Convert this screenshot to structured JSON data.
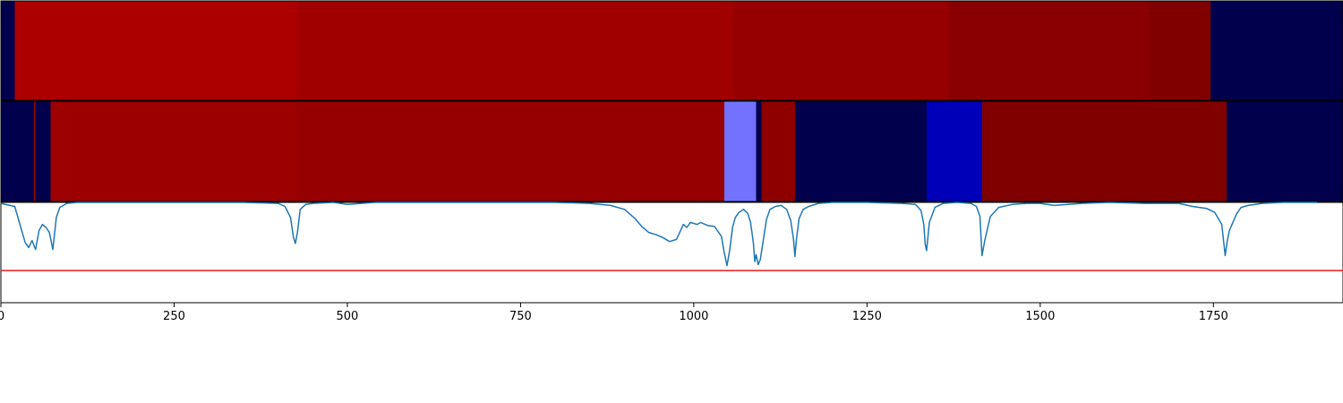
{
  "chart_data": {
    "type": "heatmap",
    "title": "",
    "xlabel": "",
    "ylabel": "",
    "xlim": [
      0,
      1937
    ],
    "x_ticks": [
      {
        "value": 0,
        "label": "0"
      },
      {
        "value": 250,
        "label": "250"
      },
      {
        "value": 500,
        "label": "500"
      },
      {
        "value": 750,
        "label": "750"
      },
      {
        "value": 1000,
        "label": "1000"
      },
      {
        "value": 1250,
        "label": "1250"
      },
      {
        "value": 1500,
        "label": "1500"
      },
      {
        "value": 1750,
        "label": "1750"
      }
    ],
    "tracks": [
      {
        "segments": [
          {
            "start": 0,
            "end": 20,
            "color": "#00004c"
          },
          {
            "start": 20,
            "end": 427,
            "color": "#ac0000"
          },
          {
            "start": 427,
            "end": 1057,
            "color": "#a00000"
          },
          {
            "start": 1057,
            "end": 1368,
            "color": "#960000"
          },
          {
            "start": 1368,
            "end": 1657,
            "color": "#8a0000"
          },
          {
            "start": 1657,
            "end": 1746,
            "color": "#800000"
          },
          {
            "start": 1746,
            "end": 1937,
            "color": "#00004c"
          }
        ]
      },
      {
        "segments": [
          {
            "start": 0,
            "end": 48,
            "color": "#00004c"
          },
          {
            "start": 48,
            "end": 50,
            "color": "#9a0000"
          },
          {
            "start": 50,
            "end": 72,
            "color": "#00004c"
          },
          {
            "start": 72,
            "end": 425,
            "color": "#9d0000"
          },
          {
            "start": 425,
            "end": 1044,
            "color": "#970000"
          },
          {
            "start": 1044,
            "end": 1090,
            "color": "#7272ff"
          },
          {
            "start": 1090,
            "end": 1098,
            "color": "#00004c"
          },
          {
            "start": 1098,
            "end": 1146,
            "color": "#8e0000"
          },
          {
            "start": 1146,
            "end": 1336,
            "color": "#00004c"
          },
          {
            "start": 1336,
            "end": 1416,
            "color": "#0000b8"
          },
          {
            "start": 1416,
            "end": 1769,
            "color": "#800000"
          },
          {
            "start": 1769,
            "end": 1937,
            "color": "#00004c"
          }
        ]
      }
    ],
    "line_panel": {
      "ylim": [
        0,
        1
      ],
      "line_color": "#1f77b4",
      "threshold": 0.32,
      "threshold_color": "#e41a1c",
      "x": [
        0,
        20,
        35,
        40,
        45,
        50,
        55,
        60,
        65,
        70,
        75,
        80,
        85,
        95,
        110,
        150,
        200,
        250,
        300,
        350,
        400,
        410,
        418,
        422,
        425,
        428,
        432,
        440,
        450,
        480,
        500,
        520,
        540,
        600,
        700,
        800,
        850,
        880,
        900,
        915,
        925,
        935,
        945,
        955,
        965,
        975,
        985,
        990,
        995,
        1000,
        1005,
        1010,
        1020,
        1030,
        1040,
        1044,
        1048,
        1052,
        1056,
        1060,
        1065,
        1072,
        1078,
        1082,
        1086,
        1088,
        1090,
        1093,
        1096,
        1100,
        1105,
        1110,
        1118,
        1126,
        1134,
        1140,
        1144,
        1146,
        1148,
        1152,
        1158,
        1166,
        1180,
        1200,
        1250,
        1300,
        1320,
        1328,
        1332,
        1334,
        1336,
        1340,
        1348,
        1360,
        1380,
        1400,
        1408,
        1413,
        1416,
        1420,
        1428,
        1440,
        1460,
        1480,
        1500,
        1520,
        1540,
        1560,
        1600,
        1650,
        1700,
        1720,
        1740,
        1752,
        1762,
        1767,
        1770,
        1773,
        1778,
        1783,
        1790,
        1800,
        1820,
        1850,
        1900,
        1937
      ],
      "y": [
        0.99,
        0.96,
        0.6,
        0.55,
        0.62,
        0.53,
        0.72,
        0.78,
        0.75,
        0.7,
        0.53,
        0.85,
        0.95,
        0.99,
        1.0,
        1.0,
        1.0,
        1.0,
        1.0,
        1.0,
        0.99,
        0.96,
        0.85,
        0.66,
        0.59,
        0.7,
        0.93,
        0.98,
        0.99,
        1.0,
        0.98,
        0.99,
        1.0,
        1.0,
        1.0,
        1.0,
        0.99,
        0.97,
        0.93,
        0.84,
        0.76,
        0.7,
        0.68,
        0.65,
        0.61,
        0.63,
        0.78,
        0.75,
        0.8,
        0.79,
        0.78,
        0.8,
        0.77,
        0.76,
        0.66,
        0.5,
        0.37,
        0.53,
        0.75,
        0.85,
        0.9,
        0.93,
        0.89,
        0.8,
        0.6,
        0.41,
        0.48,
        0.38,
        0.43,
        0.61,
        0.83,
        0.93,
        0.96,
        0.97,
        0.93,
        0.82,
        0.63,
        0.46,
        0.62,
        0.84,
        0.93,
        0.96,
        0.99,
        1.0,
        1.0,
        0.99,
        0.98,
        0.92,
        0.78,
        0.58,
        0.52,
        0.8,
        0.95,
        0.99,
        1.0,
        0.99,
        0.96,
        0.86,
        0.47,
        0.62,
        0.86,
        0.95,
        0.98,
        0.99,
        0.99,
        0.97,
        0.98,
        0.99,
        1.0,
        0.99,
        0.99,
        0.96,
        0.94,
        0.9,
        0.78,
        0.47,
        0.62,
        0.72,
        0.8,
        0.88,
        0.95,
        0.97,
        0.99,
        1.0,
        1.0
      ]
    }
  }
}
